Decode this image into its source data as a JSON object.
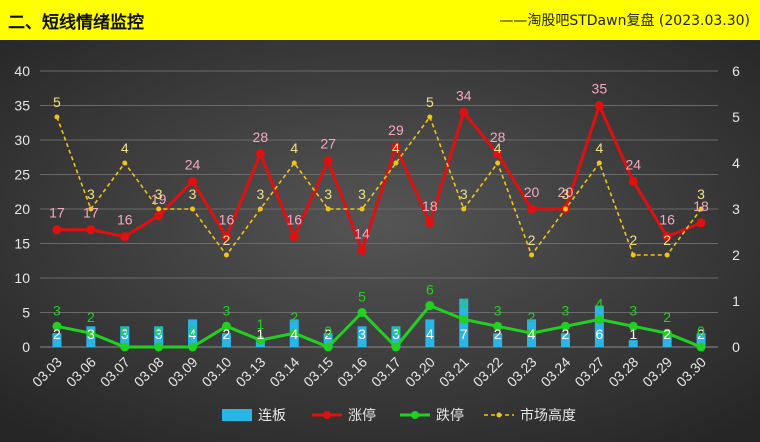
{
  "header": {
    "title": "二、短线情绪监控",
    "source": "——淘股吧STDawn复盘 (2023.03.30)"
  },
  "colors": {
    "header_bg": "#ffff00",
    "bar": "#29b6e6",
    "limit_up": "#e01010",
    "limit_down": "#22d022",
    "height": "#f0c419",
    "limit_up_label": "#f4a8c0",
    "height_label": "#f0e08a",
    "limit_down_label": "#22d022",
    "bar_label": "#ffffff"
  },
  "chart_data": {
    "type": "combo",
    "categories": [
      "03.03",
      "03.06",
      "03.07",
      "03.08",
      "03.09",
      "03.10",
      "03.13",
      "03.14",
      "03.15",
      "03.16",
      "03.17",
      "03.20",
      "03.21",
      "03.22",
      "03.23",
      "03.24",
      "03.27",
      "03.28",
      "03.29",
      "03.30"
    ],
    "left_axis": {
      "min": 0,
      "max": 40,
      "ticks": [
        "0",
        "5",
        "10",
        "15",
        "20",
        "25",
        "30",
        "35",
        "40"
      ]
    },
    "right_axis": {
      "min": 0,
      "max": 6,
      "ticks": [
        "0",
        "1",
        "2",
        "3",
        "4",
        "5",
        "6"
      ]
    },
    "series": [
      {
        "name": "连板",
        "type": "bar",
        "axis": "left",
        "values": [
          2,
          3,
          3,
          3,
          4,
          2,
          1,
          4,
          2,
          3,
          3,
          4,
          7,
          2,
          4,
          2,
          6,
          1,
          2,
          2
        ]
      },
      {
        "name": "涨停",
        "type": "line",
        "axis": "left",
        "values": [
          17,
          17,
          16,
          19,
          24,
          16,
          28,
          16,
          27,
          14,
          29,
          18,
          34,
          28,
          20,
          20,
          35,
          24,
          16,
          18
        ]
      },
      {
        "name": "跌停",
        "type": "line",
        "axis": "left",
        "values": [
          3,
          2,
          0,
          0,
          0,
          3,
          1,
          2,
          0,
          5,
          0,
          6,
          4,
          3,
          2,
          3,
          4,
          3,
          2,
          0
        ]
      },
      {
        "name": "市场高度",
        "type": "line",
        "axis": "right",
        "dashed": true,
        "values": [
          5,
          3,
          4,
          3,
          3,
          2,
          3,
          4,
          3,
          3,
          4,
          5,
          3,
          4,
          2,
          3,
          4,
          2,
          2,
          3
        ]
      }
    ],
    "grid": true,
    "legend_position": "bottom"
  }
}
